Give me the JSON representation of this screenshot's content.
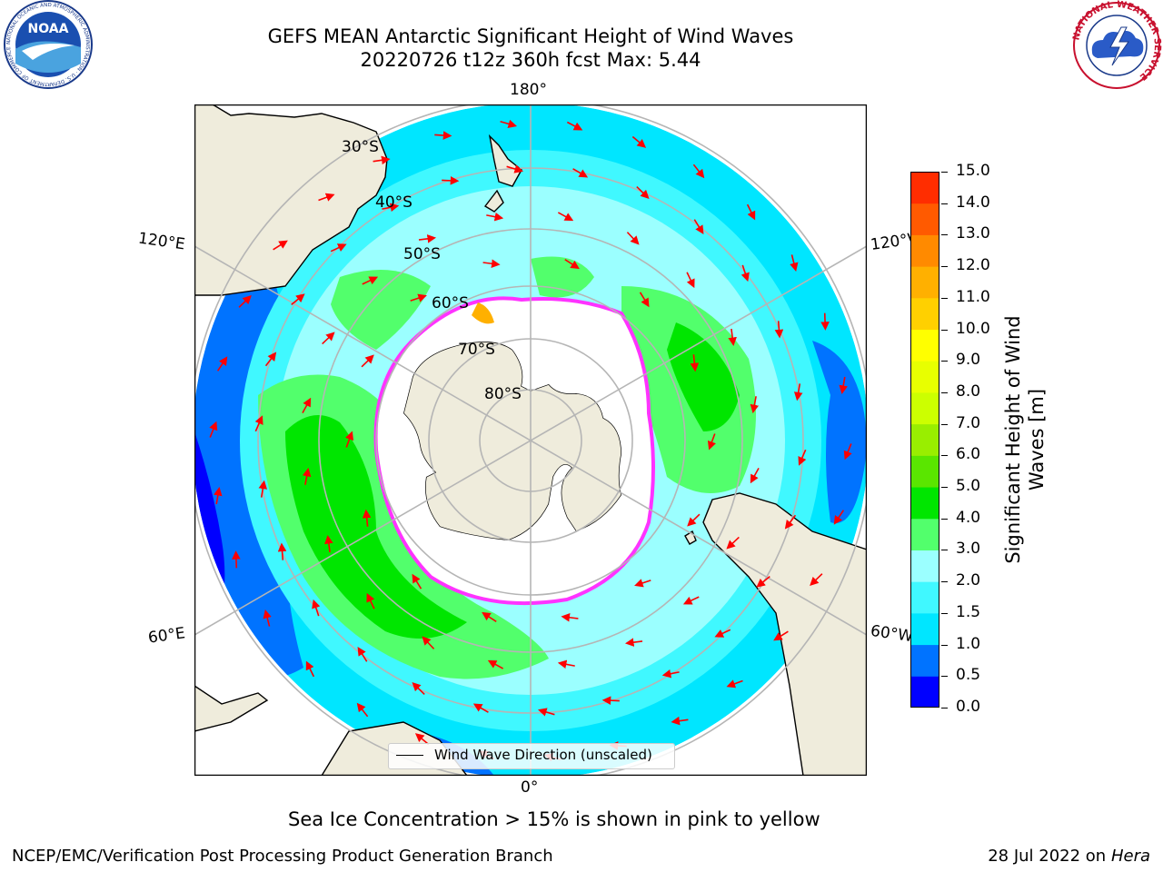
{
  "header": {
    "title_line1": "GEFS MEAN Antarctic Significant Height of Wind Waves",
    "title_line2": "20220726 t12z 360h fcst   Max: 5.44"
  },
  "logos": {
    "noaa": {
      "text": "NOAA",
      "ring_text": "NATIONAL OCEANIC AND ATMOSPHERIC ADMINISTRATION · U.S. DEPARTMENT OF COMMERCE"
    },
    "nws": {
      "ring_text": "NATIONAL WEATHER SERVICE"
    }
  },
  "map": {
    "projection": "south-polar-stereographic",
    "lon_labels": {
      "top": "180°",
      "bottom": "0°",
      "left_upper": "120°E",
      "left_lower": "60°E",
      "right_upper": "120°W",
      "right_lower": "60°W"
    },
    "lat_labels": [
      "30°S",
      "40°S",
      "50°S",
      "60°S",
      "70°S",
      "80°S"
    ],
    "legend_label": "Wind Wave Direction (unscaled)",
    "colors": {
      "land": "#efecdc",
      "ice_interior": "#ffffff",
      "ice_edge": "#ff33ff",
      "grid": "#b5b5b5",
      "arrow": "#ff0000"
    }
  },
  "colorbar": {
    "label": "Significant Height of Wind Waves [m]",
    "ticks": [
      "0.0",
      "0.5",
      "1.0",
      "1.5",
      "2.0",
      "3.0",
      "4.0",
      "5.0",
      "6.0",
      "7.0",
      "8.0",
      "9.0",
      "10.0",
      "11.0",
      "12.0",
      "13.0",
      "14.0",
      "15.0"
    ],
    "colors": [
      "#0000ff",
      "#0073ff",
      "#00e6ff",
      "#40f8ff",
      "#9bffff",
      "#52ff6c",
      "#00e600",
      "#5ae600",
      "#99ee00",
      "#ccff00",
      "#e8ff00",
      "#ffff00",
      "#ffd000",
      "#ffb000",
      "#ff8a00",
      "#ff5a00",
      "#ff2d00"
    ]
  },
  "notes": {
    "sea_ice": "Sea Ice Concentration > 15% is shown in pink to yellow"
  },
  "footer": {
    "left": "NCEP/EMC/Verification Post Processing Product Generation Branch",
    "right_prefix": "28 Jul 2022 on ",
    "right_host": "Hera"
  }
}
